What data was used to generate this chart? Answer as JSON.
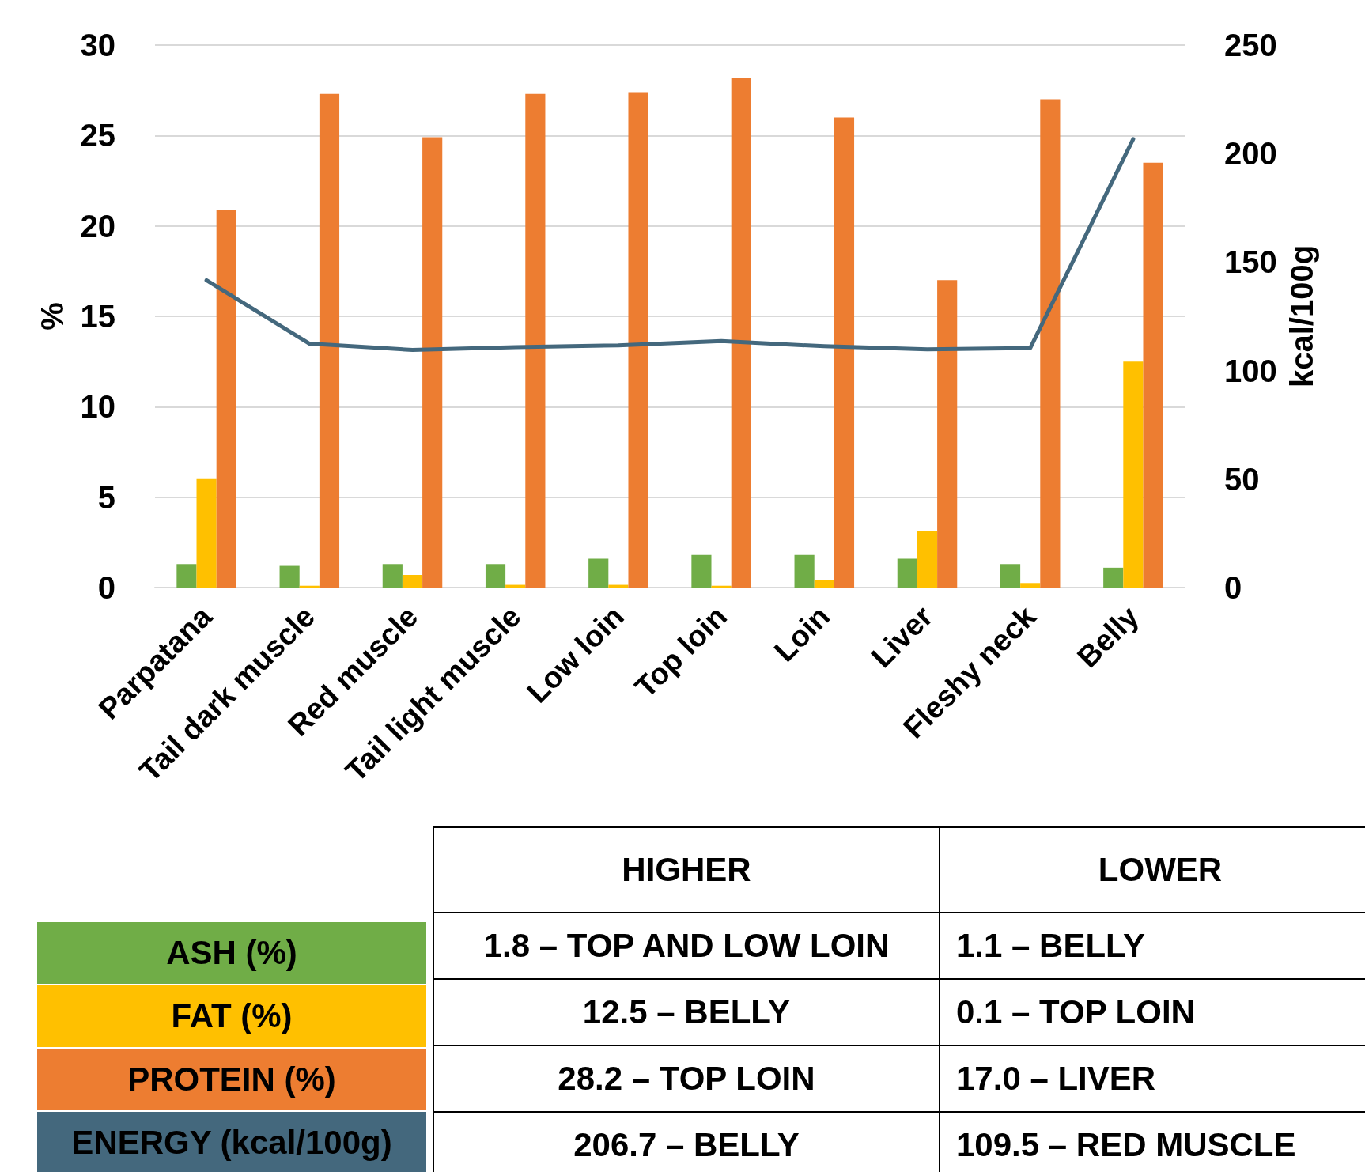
{
  "chart_data": {
    "type": "bar",
    "categories": [
      "Parpatana",
      "Tail dark muscle",
      "Red muscle",
      "Tail light muscle",
      "Low loin",
      "Top loin",
      "Loin",
      "Liver",
      "Fleshy neck",
      "Belly"
    ],
    "series": [
      {
        "name": "ASH (%)",
        "color": "#70ad47",
        "values": [
          1.3,
          1.2,
          1.3,
          1.3,
          1.6,
          1.8,
          1.8,
          1.6,
          1.3,
          1.1
        ]
      },
      {
        "name": "FAT (%)",
        "color": "#ffc000",
        "values": [
          6.0,
          0.1,
          0.7,
          0.15,
          0.15,
          0.1,
          0.4,
          3.1,
          0.25,
          12.5
        ]
      },
      {
        "name": "PROTEIN (%)",
        "color": "#ed7d31",
        "values": [
          20.9,
          27.3,
          24.9,
          27.3,
          27.4,
          28.2,
          26.0,
          17.0,
          27.0,
          23.5
        ]
      },
      {
        "name": "ENERGY (kcal/100g)",
        "color": "#44687d",
        "type": "line",
        "axis": "y2",
        "values": [
          141.6,
          112.4,
          109.5,
          110.8,
          111.6,
          113.6,
          111.2,
          109.8,
          110.4,
          206.7
        ]
      }
    ],
    "ylabel": "%",
    "y2label": "kcal/100g",
    "ylim": [
      0,
      30
    ],
    "yticks": [
      0,
      5,
      10,
      15,
      20,
      25,
      30
    ],
    "y2lim": [
      0,
      250
    ],
    "y2ticks": [
      0,
      50,
      100,
      150,
      200,
      250
    ],
    "grid": "y",
    "legend": "bottom left",
    "marker": "none",
    "line_style": "solid",
    "annotations": [
      "HIGHER",
      "LOWER",
      "1.8 – TOP AND LOW LOIN",
      "1.1 –  BELLY",
      "12.5 – BELLY",
      "0.1 –  TOP LOIN",
      "28.2 – TOP LOIN",
      "17.0 –  LIVER",
      "206.7 – BELLY",
      "109.5 – RED MUSCLE"
    ]
  }
}
